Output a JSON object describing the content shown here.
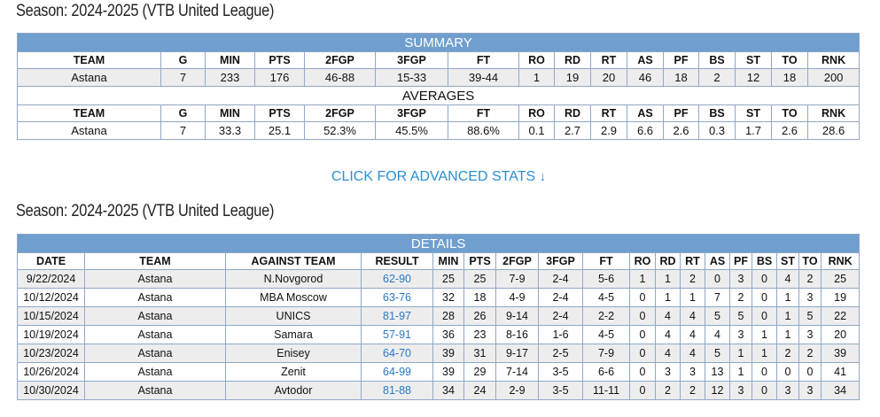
{
  "season_title_1": "Season: 2024-2025 (VTB United League)",
  "season_title_2": "Season: 2024-2025 (VTB United League)",
  "summary": {
    "banner": "SUMMARY",
    "headers": [
      "TEAM",
      "G",
      "MIN",
      "PTS",
      "2FGP",
      "3FGP",
      "FT",
      "RO",
      "RD",
      "RT",
      "AS",
      "PF",
      "BS",
      "ST",
      "TO",
      "RNK"
    ],
    "row": [
      "Astana",
      "7",
      "233",
      "176",
      "46-88",
      "15-33",
      "39-44",
      "1",
      "19",
      "20",
      "46",
      "18",
      "2",
      "12",
      "18",
      "200"
    ]
  },
  "averages": {
    "banner": "AVERAGES",
    "headers": [
      "TEAM",
      "G",
      "MIN",
      "PTS",
      "2FGP",
      "3FGP",
      "FT",
      "RO",
      "RD",
      "RT",
      "AS",
      "PF",
      "BS",
      "ST",
      "TO",
      "RNK"
    ],
    "row": [
      "Astana",
      "7",
      "33.3",
      "25.1",
      "52.3%",
      "45.5%",
      "88.6%",
      "0.1",
      "2.7",
      "2.9",
      "6.6",
      "2.6",
      "0.3",
      "1.7",
      "2.6",
      "28.6"
    ]
  },
  "advanced_link": {
    "label": "CLICK FOR ADVANCED STATS",
    "arrow": "↓"
  },
  "details": {
    "banner": "DETAILS",
    "headers": [
      "DATE",
      "TEAM",
      "AGAINST TEAM",
      "RESULT",
      "MIN",
      "PTS",
      "2FGP",
      "3FGP",
      "FT",
      "RO",
      "RD",
      "RT",
      "AS",
      "PF",
      "BS",
      "ST",
      "TO",
      "RNK"
    ],
    "rows": [
      [
        "9/22/2024",
        "Astana",
        "N.Novgorod",
        "62-90",
        "25",
        "25",
        "7-9",
        "2-4",
        "5-6",
        "1",
        "1",
        "2",
        "0",
        "3",
        "0",
        "4",
        "2",
        "25"
      ],
      [
        "10/12/2024",
        "Astana",
        "MBA Moscow",
        "63-76",
        "32",
        "18",
        "4-9",
        "2-4",
        "4-5",
        "0",
        "1",
        "1",
        "7",
        "2",
        "0",
        "1",
        "3",
        "19"
      ],
      [
        "10/15/2024",
        "Astana",
        "UNICS",
        "81-97",
        "28",
        "26",
        "9-14",
        "2-4",
        "2-2",
        "0",
        "4",
        "4",
        "5",
        "5",
        "0",
        "1",
        "5",
        "22"
      ],
      [
        "10/19/2024",
        "Astana",
        "Samara",
        "57-91",
        "36",
        "23",
        "8-16",
        "1-6",
        "4-5",
        "0",
        "4",
        "4",
        "4",
        "3",
        "1",
        "1",
        "3",
        "20"
      ],
      [
        "10/23/2024",
        "Astana",
        "Enisey",
        "64-70",
        "39",
        "31",
        "9-17",
        "2-5",
        "7-9",
        "0",
        "4",
        "4",
        "5",
        "1",
        "1",
        "2",
        "2",
        "39"
      ],
      [
        "10/26/2024",
        "Astana",
        "Zenit",
        "64-99",
        "39",
        "29",
        "7-14",
        "3-5",
        "6-6",
        "0",
        "3",
        "3",
        "13",
        "1",
        "0",
        "0",
        "0",
        "41"
      ],
      [
        "10/30/2024",
        "Astana",
        "Avtodor",
        "81-88",
        "34",
        "24",
        "2-9",
        "3-5",
        "11-11",
        "0",
        "2",
        "2",
        "12",
        "3",
        "0",
        "3",
        "3",
        "34"
      ]
    ]
  },
  "colors": {
    "banner": "#6f9fcf",
    "link": "#2a8fcf",
    "row_shade": "#ededed",
    "border": "#8fa8c8"
  }
}
